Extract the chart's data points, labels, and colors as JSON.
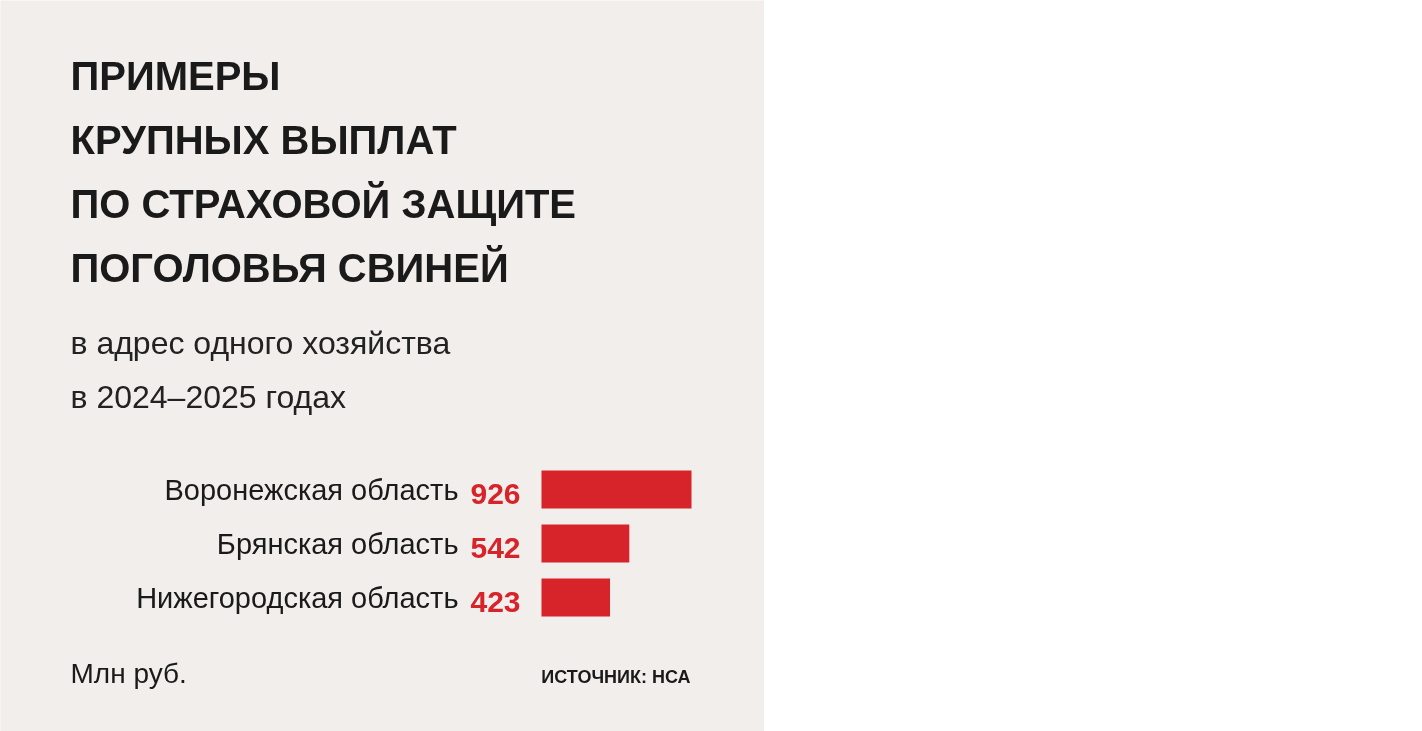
{
  "chart_data": {
    "type": "bar",
    "orientation": "horizontal",
    "title": "ПРИМЕРЫ\nКРУПНЫХ ВЫПЛАТ\nПО СТРАХОВОЙ ЗАЩИТЕ\nПОГОЛОВЬЯ СВИНЕЙ",
    "subtitle": "в адрес одного хозяйства\nв 2024–2025 годах",
    "categories": [
      "Воронежская область",
      "Брянская область",
      "Нижегородская область"
    ],
    "values": [
      926,
      542,
      423
    ],
    "color": "#d7232a",
    "data_labels": true,
    "tick_labels": "y",
    "annotations": [
      "Млн руб.",
      "ИСТОЧНИК: НСА"
    ]
  }
}
